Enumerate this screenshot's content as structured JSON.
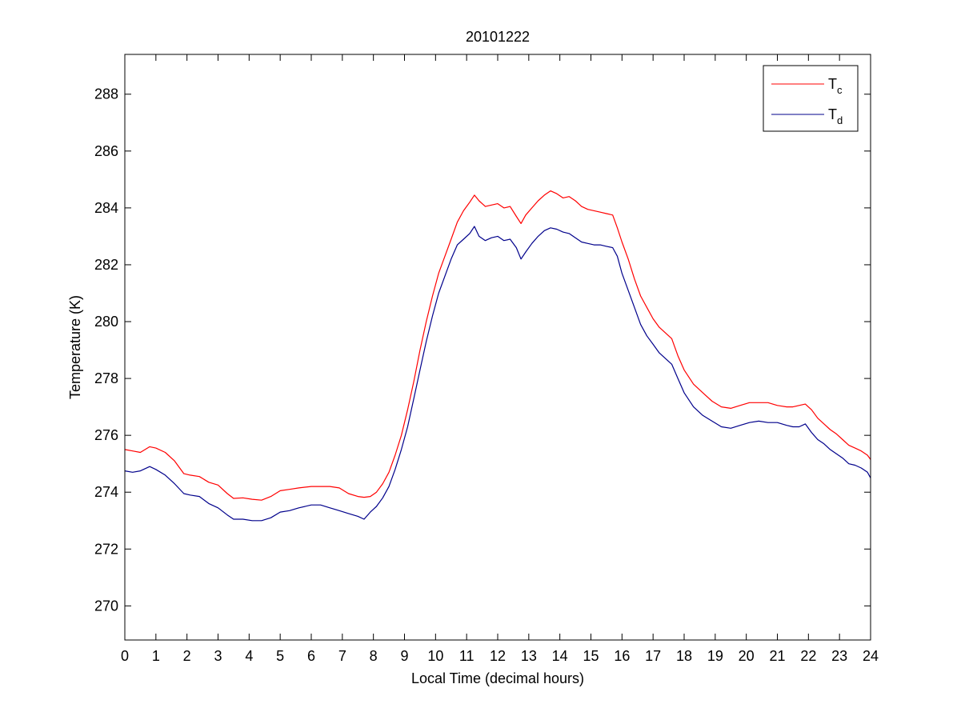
{
  "chart_data": {
    "type": "line",
    "title": "20101222",
    "xlabel": "Local Time (decimal hours)",
    "ylabel": "Temperature (K)",
    "xlim": [
      0,
      24
    ],
    "ylim": [
      268.8,
      289.4
    ],
    "xticks": [
      0,
      1,
      2,
      3,
      4,
      5,
      6,
      7,
      8,
      9,
      10,
      11,
      12,
      13,
      14,
      15,
      16,
      17,
      18,
      19,
      20,
      21,
      22,
      23,
      24
    ],
    "yticks": [
      270,
      272,
      274,
      276,
      278,
      280,
      282,
      284,
      286,
      288
    ],
    "grid": false,
    "legend_position": "top-right",
    "series": [
      {
        "name": "T_c",
        "legend_main": "T",
        "legend_sub": "c",
        "color": "#ff0000",
        "x": [
          0,
          0.25,
          0.5,
          0.8,
          1.0,
          1.3,
          1.6,
          1.9,
          2.1,
          2.4,
          2.7,
          3.0,
          3.3,
          3.5,
          3.8,
          4.1,
          4.4,
          4.7,
          5.0,
          5.3,
          5.6,
          6.0,
          6.3,
          6.6,
          6.9,
          7.2,
          7.5,
          7.7,
          7.9,
          8.1,
          8.3,
          8.5,
          8.7,
          8.9,
          9.1,
          9.3,
          9.5,
          9.7,
          9.9,
          10.1,
          10.3,
          10.5,
          10.7,
          10.9,
          11.1,
          11.25,
          11.4,
          11.6,
          11.8,
          12.0,
          12.2,
          12.4,
          12.6,
          12.75,
          12.9,
          13.1,
          13.3,
          13.5,
          13.7,
          13.9,
          14.1,
          14.3,
          14.5,
          14.7,
          14.9,
          15.1,
          15.3,
          15.5,
          15.7,
          15.85,
          16.0,
          16.2,
          16.4,
          16.6,
          16.8,
          17.0,
          17.2,
          17.4,
          17.6,
          17.8,
          18.0,
          18.3,
          18.6,
          18.9,
          19.2,
          19.5,
          19.8,
          20.1,
          20.4,
          20.7,
          21.0,
          21.3,
          21.5,
          21.7,
          21.9,
          22.1,
          22.3,
          22.5,
          22.7,
          22.9,
          23.1,
          23.3,
          23.5,
          23.7,
          23.9,
          24.0
        ],
        "y": [
          275.5,
          275.45,
          275.4,
          275.6,
          275.55,
          275.4,
          275.1,
          274.65,
          274.6,
          274.55,
          274.35,
          274.25,
          273.95,
          273.78,
          273.8,
          273.75,
          273.72,
          273.85,
          274.05,
          274.1,
          274.15,
          274.2,
          274.2,
          274.2,
          274.15,
          273.95,
          273.85,
          273.82,
          273.85,
          274.0,
          274.3,
          274.7,
          275.3,
          276.0,
          276.9,
          277.9,
          279.0,
          280.0,
          280.9,
          281.7,
          282.3,
          282.9,
          283.5,
          283.9,
          284.2,
          284.45,
          284.25,
          284.05,
          284.1,
          284.15,
          284.0,
          284.05,
          283.7,
          283.45,
          283.75,
          284.0,
          284.25,
          284.45,
          284.6,
          284.5,
          284.35,
          284.4,
          284.25,
          284.05,
          283.95,
          283.9,
          283.85,
          283.8,
          283.75,
          283.3,
          282.8,
          282.2,
          281.5,
          280.9,
          280.5,
          280.1,
          279.8,
          279.6,
          279.4,
          278.8,
          278.3,
          277.8,
          277.5,
          277.2,
          277.0,
          276.95,
          277.05,
          277.15,
          277.15,
          277.15,
          277.05,
          277.0,
          277.0,
          277.05,
          277.1,
          276.9,
          276.6,
          276.4,
          276.2,
          276.05,
          275.85,
          275.65,
          275.55,
          275.45,
          275.3,
          275.15
        ]
      },
      {
        "name": "T_d",
        "legend_main": "T",
        "legend_sub": "d",
        "color": "#00008b",
        "x": [
          0,
          0.25,
          0.5,
          0.8,
          1.0,
          1.3,
          1.6,
          1.9,
          2.1,
          2.4,
          2.7,
          3.0,
          3.3,
          3.5,
          3.8,
          4.1,
          4.4,
          4.7,
          5.0,
          5.3,
          5.6,
          6.0,
          6.3,
          6.6,
          6.9,
          7.2,
          7.5,
          7.7,
          7.9,
          8.1,
          8.3,
          8.5,
          8.7,
          8.9,
          9.1,
          9.3,
          9.5,
          9.7,
          9.9,
          10.1,
          10.3,
          10.5,
          10.7,
          10.9,
          11.1,
          11.25,
          11.4,
          11.6,
          11.8,
          12.0,
          12.2,
          12.4,
          12.6,
          12.75,
          12.9,
          13.1,
          13.3,
          13.5,
          13.7,
          13.9,
          14.1,
          14.3,
          14.5,
          14.7,
          14.9,
          15.1,
          15.3,
          15.5,
          15.7,
          15.85,
          16.0,
          16.2,
          16.4,
          16.6,
          16.8,
          17.0,
          17.2,
          17.4,
          17.6,
          17.8,
          18.0,
          18.3,
          18.6,
          18.9,
          19.2,
          19.5,
          19.8,
          20.1,
          20.4,
          20.7,
          21.0,
          21.3,
          21.5,
          21.7,
          21.9,
          22.1,
          22.3,
          22.5,
          22.7,
          22.9,
          23.1,
          23.3,
          23.5,
          23.7,
          23.9,
          24.0
        ],
        "y": [
          274.75,
          274.7,
          274.75,
          274.9,
          274.8,
          274.6,
          274.3,
          273.95,
          273.9,
          273.85,
          273.6,
          273.45,
          273.2,
          273.05,
          273.05,
          273.0,
          273.0,
          273.1,
          273.3,
          273.35,
          273.45,
          273.55,
          273.55,
          273.45,
          273.35,
          273.25,
          273.15,
          273.05,
          273.3,
          273.5,
          273.8,
          274.2,
          274.8,
          275.5,
          276.3,
          277.3,
          278.3,
          279.3,
          280.2,
          281.0,
          281.6,
          282.2,
          282.7,
          282.9,
          283.1,
          283.35,
          283.0,
          282.85,
          282.95,
          283.0,
          282.85,
          282.9,
          282.6,
          282.2,
          282.45,
          282.75,
          283.0,
          283.2,
          283.3,
          283.25,
          283.15,
          283.1,
          282.95,
          282.8,
          282.75,
          282.7,
          282.7,
          282.65,
          282.6,
          282.3,
          281.7,
          281.1,
          280.5,
          279.9,
          279.5,
          279.2,
          278.9,
          278.7,
          278.5,
          278.0,
          277.5,
          277.0,
          276.7,
          276.5,
          276.3,
          276.25,
          276.35,
          276.45,
          276.5,
          276.45,
          276.45,
          276.35,
          276.3,
          276.3,
          276.4,
          276.1,
          275.85,
          275.7,
          275.5,
          275.35,
          275.2,
          275.0,
          274.95,
          274.85,
          274.7,
          274.5
        ]
      }
    ]
  }
}
